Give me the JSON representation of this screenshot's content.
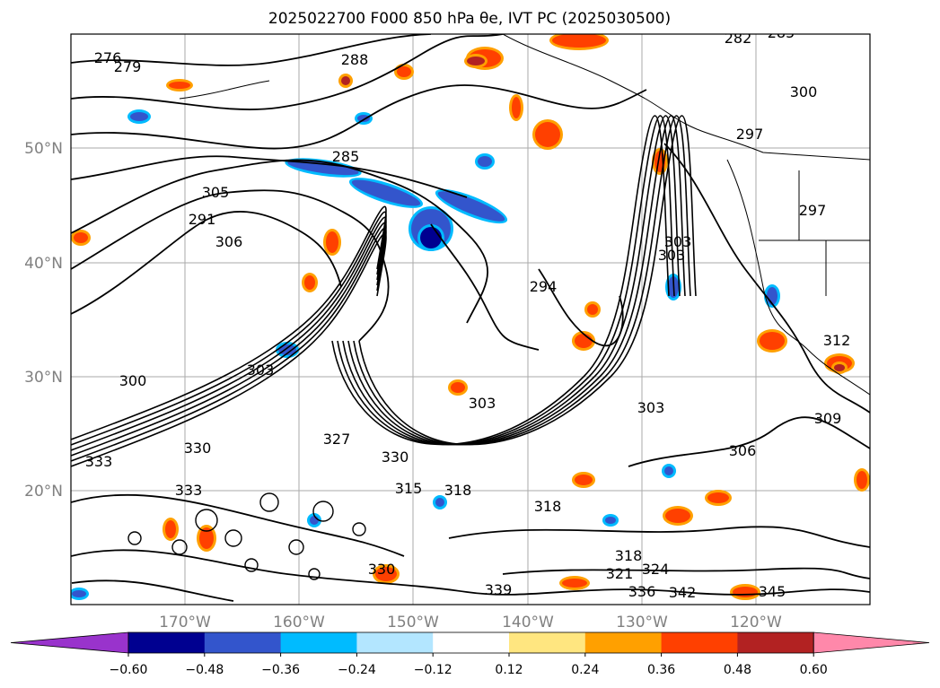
{
  "title": "2025022700 F000 850 hPa θe, IVT PC (2025030500)",
  "map": {
    "lon_labels": [
      "170°W",
      "160°W",
      "150°W",
      "140°W",
      "130°W",
      "120°W"
    ],
    "lat_labels": [
      "50°N",
      "40°N",
      "30°N",
      "20°N"
    ],
    "contour_labels": [
      "276",
      "279",
      "285",
      "282",
      "285",
      "288",
      "297",
      "300",
      "303",
      "297",
      "305",
      "306",
      "291",
      "300",
      "303",
      "294",
      "303",
      "303",
      "303",
      "306",
      "309",
      "312",
      "315",
      "318",
      "318",
      "318",
      "321",
      "324",
      "327",
      "330",
      "330",
      "330",
      "333",
      "333",
      "336",
      "339",
      "342",
      "345"
    ]
  },
  "colorbar": {
    "ticks": [
      "−0.60",
      "−0.48",
      "−0.36",
      "−0.24",
      "−0.12",
      "0.12",
      "0.24",
      "0.36",
      "0.48",
      "0.60"
    ],
    "colors": [
      "#9933cc",
      "#000090",
      "#3355cc",
      "#00bbff",
      "#b3e6ff",
      "#ffffff",
      "#ffe680",
      "#ffa000",
      "#ff4000",
      "#b22222",
      "#ff88aa"
    ]
  },
  "chart_data": {
    "type": "contour map",
    "projection": "lat-lon",
    "lon_ticks": [
      -170,
      -160,
      -150,
      -140,
      -130,
      -120
    ],
    "lat_ticks": [
      20,
      30,
      40,
      50
    ],
    "colorbar_levels": [
      -0.6,
      -0.48,
      -0.36,
      -0.24,
      -0.12,
      0.12,
      0.24,
      0.36,
      0.48,
      0.6
    ],
    "colorbar_extend": "both",
    "grid": true
  }
}
